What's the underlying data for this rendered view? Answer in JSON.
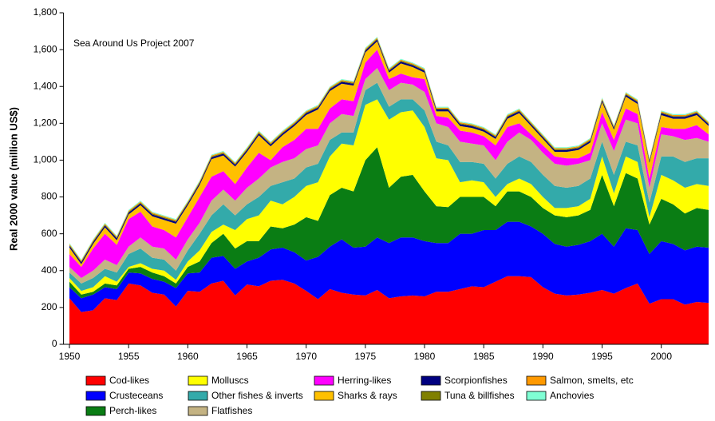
{
  "chart_data": {
    "type": "stacked-area",
    "ylabel": "Real 2000 value (million US$)",
    "annotation": "Sea Around Us Project 2007",
    "x": [
      1950,
      1951,
      1952,
      1953,
      1954,
      1955,
      1956,
      1957,
      1958,
      1959,
      1960,
      1961,
      1962,
      1963,
      1964,
      1965,
      1966,
      1967,
      1968,
      1969,
      1970,
      1971,
      1972,
      1973,
      1974,
      1975,
      1976,
      1977,
      1978,
      1979,
      1980,
      1981,
      1982,
      1983,
      1984,
      1985,
      1986,
      1987,
      1988,
      1989,
      1990,
      1991,
      1992,
      1993,
      1994,
      1995,
      1996,
      1997,
      1998,
      1999,
      2000,
      2001,
      2002,
      2003,
      2004
    ],
    "xlim": [
      1949.5,
      2004
    ],
    "xticks": [
      1950,
      1955,
      1960,
      1965,
      1970,
      1975,
      1980,
      1985,
      1990,
      1995,
      2000
    ],
    "ylim": [
      0,
      1800
    ],
    "yticks": [
      0,
      200,
      400,
      600,
      800,
      {
        "value": 1000,
        "label": "1,000"
      },
      {
        "value": 1200,
        "label": "1,200"
      },
      {
        "value": 1400,
        "label": "1,400"
      },
      {
        "value": 1600,
        "label": "1,600"
      },
      {
        "value": 1800,
        "label": "1,800"
      }
    ],
    "series": [
      {
        "name": "Cod-likes",
        "color": "#ff0000",
        "values": [
          250,
          175,
          185,
          250,
          240,
          330,
          320,
          280,
          270,
          205,
          290,
          285,
          330,
          345,
          265,
          325,
          315,
          345,
          350,
          330,
          290,
          245,
          300,
          280,
          270,
          265,
          295,
          250,
          260,
          265,
          260,
          285,
          285,
          300,
          315,
          310,
          340,
          370,
          370,
          365,
          310,
          275,
          265,
          270,
          280,
          295,
          275,
          305,
          330,
          220,
          245,
          245,
          215,
          230,
          225
        ]
      },
      {
        "name": "Crusteceans",
        "color": "#0000ff",
        "values": [
          60,
          75,
          85,
          60,
          60,
          60,
          65,
          75,
          70,
          100,
          95,
          105,
          140,
          135,
          145,
          125,
          155,
          170,
          175,
          170,
          165,
          230,
          230,
          290,
          255,
          265,
          285,
          300,
          320,
          315,
          300,
          265,
          265,
          300,
          285,
          310,
          280,
          295,
          295,
          275,
          290,
          270,
          265,
          270,
          280,
          305,
          255,
          325,
          290,
          270,
          315,
          300,
          295,
          300,
          300
        ]
      },
      {
        "name": "Perch-likes",
        "color": "#0a7d14",
        "values": [
          30,
          20,
          15,
          20,
          20,
          20,
          35,
          35,
          30,
          25,
          35,
          60,
          80,
          120,
          110,
          110,
          90,
          125,
          105,
          150,
          235,
          195,
          280,
          280,
          305,
          470,
          490,
          300,
          330,
          340,
          270,
          200,
          195,
          200,
          200,
          180,
          130,
          165,
          165,
          160,
          140,
          155,
          160,
          160,
          170,
          320,
          220,
          300,
          280,
          160,
          230,
          215,
          200,
          210,
          205
        ]
      },
      {
        "name": "Molluscs",
        "color": "#ffff00",
        "values": [
          20,
          20,
          25,
          40,
          20,
          10,
          20,
          20,
          30,
          20,
          30,
          60,
          60,
          50,
          100,
          120,
          140,
          140,
          130,
          150,
          170,
          210,
          210,
          240,
          250,
          300,
          260,
          370,
          350,
          350,
          350,
          260,
          255,
          80,
          90,
          80,
          50,
          40,
          70,
          70,
          60,
          40,
          50,
          50,
          60,
          100,
          70,
          90,
          90,
          40,
          130,
          130,
          140,
          130,
          130
        ]
      },
      {
        "name": "Other fishes & inverts",
        "color": "#33aaaa",
        "values": [
          30,
          40,
          50,
          40,
          50,
          70,
          80,
          60,
          60,
          50,
          60,
          90,
          90,
          110,
          80,
          80,
          100,
          80,
          120,
          100,
          100,
          100,
          90,
          60,
          70,
          80,
          90,
          70,
          70,
          60,
          90,
          90,
          80,
          110,
          100,
          100,
          100,
          110,
          120,
          120,
          120,
          120,
          110,
          110,
          110,
          80,
          100,
          80,
          90,
          80,
          100,
          130,
          140,
          140,
          150
        ]
      },
      {
        "name": "Flatfishes",
        "color": "#c4b383",
        "values": [
          30,
          30,
          40,
          50,
          40,
          40,
          60,
          60,
          60,
          60,
          60,
          60,
          80,
          80,
          80,
          90,
          100,
          100,
          110,
          110,
          100,
          100,
          90,
          100,
          90,
          60,
          80,
          90,
          90,
          80,
          100,
          100,
          100,
          110,
          100,
          100,
          100,
          120,
          130,
          120,
          120,
          120,
          120,
          120,
          100,
          100,
          130,
          120,
          120,
          80,
          120,
          110,
          120,
          110,
          90
        ]
      },
      {
        "name": "Herring-likes",
        "color": "#ff00ff",
        "values": [
          70,
          60,
          120,
          140,
          110,
          150,
          140,
          110,
          100,
          120,
          120,
          140,
          130,
          100,
          90,
          110,
          140,
          40,
          80,
          100,
          110,
          90,
          80,
          80,
          80,
          90,
          100,
          60,
          50,
          40,
          70,
          40,
          50,
          60,
          60,
          50,
          80,
          80,
          50,
          30,
          40,
          40,
          40,
          30,
          40,
          60,
          60,
          60,
          50,
          50,
          40,
          40,
          60,
          70,
          40
        ]
      },
      {
        "name": "Sharks & rays",
        "color": "#ffc000",
        "values": [
          35,
          15,
          25,
          35,
          25,
          25,
          35,
          55,
          55,
          75,
          65,
          65,
          95,
          85,
          95,
          85,
          95,
          75,
          65,
          75,
          75,
          105,
          95,
          85,
          85,
          55,
          45,
          35,
          55,
          55,
          35,
          25,
          35,
          25,
          25,
          25,
          35,
          45,
          55,
          45,
          35,
          25,
          35,
          45,
          55,
          55,
          55,
          65,
          55,
          85,
          65,
          55,
          55,
          55,
          45
        ]
      },
      {
        "name": "Scorpionfishes",
        "color": "#000080",
        "values": [
          10,
          10,
          10,
          10,
          10,
          10,
          10,
          10,
          10,
          10,
          10,
          10,
          10,
          10,
          10,
          10,
          10,
          10,
          10,
          10,
          10,
          10,
          10,
          10,
          10,
          10,
          10,
          10,
          10,
          10,
          10,
          10,
          10,
          10,
          10,
          10,
          10,
          10,
          10,
          10,
          10,
          10,
          10,
          10,
          10,
          10,
          10,
          10,
          10,
          10,
          10,
          10,
          10,
          10,
          10
        ]
      },
      {
        "name": "Tuna & billfishes",
        "color": "#808000",
        "values": [
          5,
          5,
          5,
          5,
          5,
          5,
          5,
          5,
          5,
          5,
          5,
          5,
          5,
          5,
          5,
          5,
          5,
          5,
          5,
          5,
          5,
          5,
          5,
          5,
          5,
          5,
          5,
          5,
          5,
          5,
          5,
          5,
          5,
          5,
          5,
          5,
          5,
          5,
          5,
          5,
          5,
          5,
          5,
          5,
          5,
          5,
          5,
          5,
          5,
          5,
          5,
          5,
          5,
          5,
          5
        ]
      },
      {
        "name": "Salmon, smelts, etc",
        "color": "#ff9900",
        "values": [
          5,
          5,
          5,
          5,
          5,
          5,
          5,
          5,
          5,
          5,
          5,
          5,
          5,
          5,
          5,
          5,
          5,
          5,
          5,
          5,
          5,
          5,
          5,
          5,
          5,
          5,
          5,
          5,
          5,
          5,
          5,
          5,
          5,
          5,
          5,
          5,
          5,
          5,
          5,
          5,
          5,
          5,
          5,
          5,
          5,
          5,
          5,
          5,
          5,
          5,
          5,
          5,
          5,
          5,
          5
        ]
      },
      {
        "name": "Anchovies",
        "color": "#7fffd4",
        "values": [
          5,
          5,
          5,
          5,
          5,
          5,
          5,
          5,
          5,
          5,
          5,
          5,
          5,
          5,
          5,
          5,
          5,
          5,
          5,
          5,
          5,
          5,
          5,
          5,
          5,
          5,
          5,
          5,
          5,
          5,
          5,
          5,
          5,
          5,
          5,
          5,
          5,
          5,
          5,
          5,
          5,
          5,
          5,
          5,
          5,
          5,
          5,
          5,
          5,
          5,
          5,
          5,
          5,
          5,
          5
        ]
      }
    ]
  }
}
